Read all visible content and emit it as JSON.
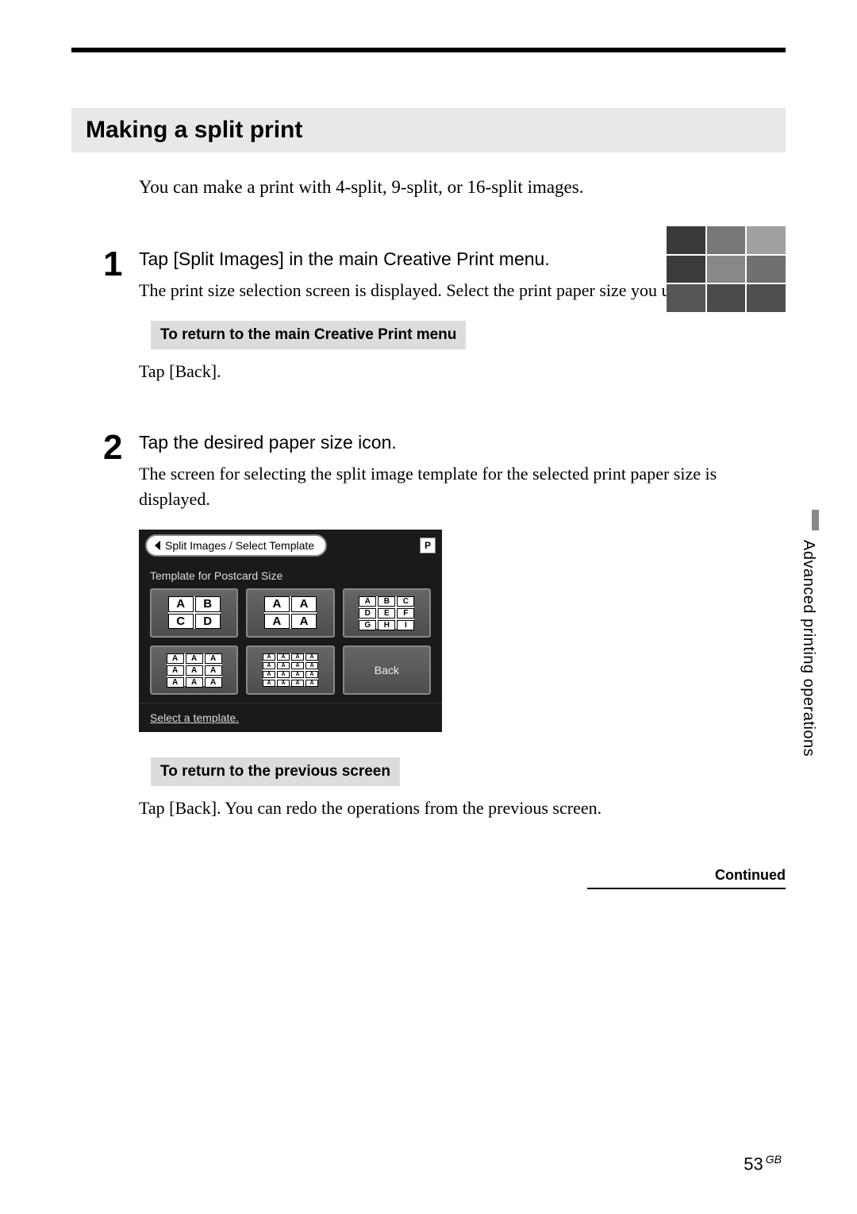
{
  "section_title": "Making a split print",
  "intro_text": "You can make a print with 4-split, 9-split, or 16-split images.",
  "steps": {
    "s1": {
      "num": "1",
      "head": "Tap [Split Images] in the main Creative Print menu.",
      "desc": "The print size selection screen is displayed. Select the print paper size you use.",
      "sub_head": "To return to the main Creative Print menu",
      "sub_desc": "Tap [Back]."
    },
    "s2": {
      "num": "2",
      "head": "Tap the desired paper size icon.",
      "desc": "The screen for selecting the split image template for the selected print paper size is displayed.",
      "sub_head": "To return to the previous screen",
      "sub_desc": "Tap [Back].  You can redo the operations from the previous screen."
    }
  },
  "device": {
    "header_tab": "Split Images / Select Template",
    "p_badge": "P",
    "subtitle": "Template for Postcard Size",
    "t1": [
      "A",
      "B",
      "C",
      "D"
    ],
    "t2": [
      "A",
      "A",
      "A",
      "A"
    ],
    "t3": [
      "A",
      "B",
      "C",
      "D",
      "E",
      "F",
      "G",
      "H",
      "I"
    ],
    "t4": [
      "A",
      "A",
      "A",
      "A",
      "A",
      "A",
      "A",
      "A",
      "A"
    ],
    "t5": [
      "A",
      "A",
      "A",
      "A",
      "A",
      "A",
      "A",
      "A",
      "A",
      "A",
      "A",
      "A",
      "A",
      "A",
      "A",
      "A"
    ],
    "back_label": "Back",
    "footer": "Select a template."
  },
  "continued": "Continued",
  "side_tab": "Advanced printing operations",
  "page_number": "53",
  "page_gb": "GB",
  "colors": {
    "title_bg": "#e8e8e8",
    "sub_bg": "#dcdcdc",
    "device_bg": "#1a1a1a",
    "side_mark": "#888888"
  }
}
